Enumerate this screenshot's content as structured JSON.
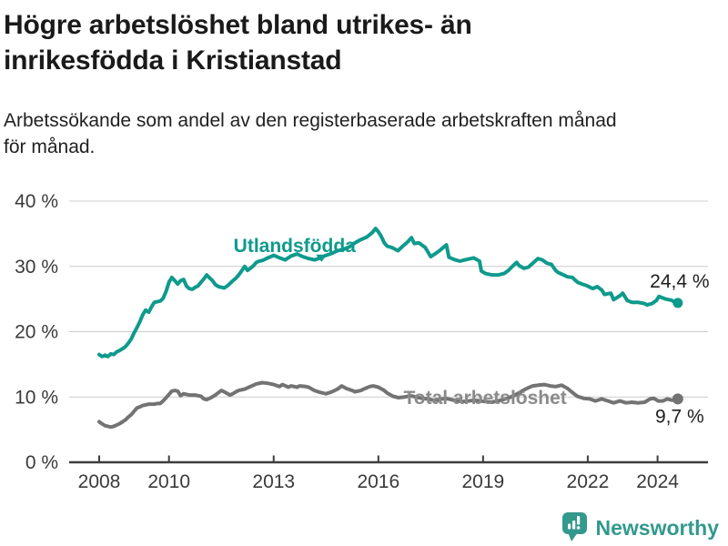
{
  "header": {
    "title": "Högre arbetslöshet bland utrikes- än inrikesfödda i Kristianstad",
    "subtitle": "Arbetssökande som andel av den registerbaserade arbetskraften månad\nför månad."
  },
  "colors": {
    "background": "#ffffff",
    "title": "#1a1a1a",
    "subtitle": "#212121",
    "gridline": "#cccccc",
    "axis": "#3d3d3d",
    "tick_label": "#3a3a3a",
    "value_label": "#1d1d1d",
    "teal": "#0e9a8c",
    "gray": "#737373",
    "brand_teal": "#32998c"
  },
  "chart_data": {
    "type": "line",
    "title": "Högre arbetslöshet bland utrikes- än inrikesfödda i Kristianstad",
    "subtitle": "Arbetssökande som andel av den registerbaserade arbetskraften månad för månad.",
    "grid": true,
    "legend_position": "inline-labels",
    "x_axis": {
      "label": "",
      "range": [
        2007.55,
        2025.45
      ],
      "ticks": [
        2008,
        2010,
        2013,
        2016,
        2019,
        2022,
        2024
      ],
      "tick_labels": [
        "2008",
        "2010",
        "2013",
        "2016",
        "2019",
        "2022",
        "2024"
      ]
    },
    "y_axis": {
      "label": "",
      "unit": "%",
      "range": [
        0,
        40
      ],
      "ticks": [
        0,
        10,
        20,
        30,
        40
      ],
      "tick_labels": [
        "0 %",
        "10 %",
        "20 %",
        "30 %",
        "40 %"
      ]
    },
    "series": [
      {
        "id": "utlandsfodda",
        "name": "Utlandsfödda",
        "color": "#0e9a8c",
        "end_value": 24.4,
        "end_label": "24,4 %",
        "end_label_position": "above",
        "label_anchor": {
          "year": 2013.6,
          "value": 32.2
        },
        "marker": {
          "year": 2014.37,
          "value": 30.7
        },
        "points": [
          [
            2008.0,
            16.5
          ],
          [
            2008.08,
            16.2
          ],
          [
            2008.17,
            16.4
          ],
          [
            2008.25,
            16.2
          ],
          [
            2008.33,
            16.6
          ],
          [
            2008.42,
            16.5
          ],
          [
            2008.5,
            16.9
          ],
          [
            2008.58,
            17.1
          ],
          [
            2008.67,
            17.4
          ],
          [
            2008.75,
            17.7
          ],
          [
            2008.83,
            18.2
          ],
          [
            2008.92,
            18.9
          ],
          [
            2009.0,
            19.8
          ],
          [
            2009.08,
            20.6
          ],
          [
            2009.17,
            21.6
          ],
          [
            2009.25,
            22.6
          ],
          [
            2009.33,
            23.3
          ],
          [
            2009.42,
            23.0
          ],
          [
            2009.5,
            23.8
          ],
          [
            2009.58,
            24.5
          ],
          [
            2009.67,
            24.6
          ],
          [
            2009.75,
            24.7
          ],
          [
            2009.83,
            25.1
          ],
          [
            2009.92,
            26.2
          ],
          [
            2010.0,
            27.6
          ],
          [
            2010.08,
            28.3
          ],
          [
            2010.17,
            27.8
          ],
          [
            2010.25,
            27.3
          ],
          [
            2010.33,
            27.8
          ],
          [
            2010.42,
            28.0
          ],
          [
            2010.5,
            27.0
          ],
          [
            2010.58,
            26.6
          ],
          [
            2010.67,
            26.5
          ],
          [
            2010.75,
            26.8
          ],
          [
            2010.83,
            27.0
          ],
          [
            2010.92,
            27.6
          ],
          [
            2011.0,
            28.1
          ],
          [
            2011.08,
            28.7
          ],
          [
            2011.17,
            28.2
          ],
          [
            2011.25,
            27.8
          ],
          [
            2011.33,
            27.2
          ],
          [
            2011.42,
            26.9
          ],
          [
            2011.5,
            26.8
          ],
          [
            2011.58,
            26.7
          ],
          [
            2011.67,
            27.0
          ],
          [
            2011.75,
            27.4
          ],
          [
            2011.83,
            27.8
          ],
          [
            2011.92,
            28.2
          ],
          [
            2012.0,
            28.7
          ],
          [
            2012.08,
            29.3
          ],
          [
            2012.17,
            30.0
          ],
          [
            2012.25,
            29.4
          ],
          [
            2012.33,
            29.7
          ],
          [
            2012.42,
            30.1
          ],
          [
            2012.5,
            30.6
          ],
          [
            2012.58,
            30.8
          ],
          [
            2012.67,
            30.9
          ],
          [
            2012.75,
            31.1
          ],
          [
            2012.83,
            31.3
          ],
          [
            2012.92,
            31.5
          ],
          [
            2013.0,
            31.7
          ],
          [
            2013.17,
            31.3
          ],
          [
            2013.33,
            31.0
          ],
          [
            2013.5,
            31.6
          ],
          [
            2013.67,
            31.9
          ],
          [
            2013.83,
            31.5
          ],
          [
            2014.0,
            31.2
          ],
          [
            2014.17,
            31.0
          ],
          [
            2014.33,
            31.3
          ],
          [
            2014.5,
            31.7
          ],
          [
            2014.67,
            32.0
          ],
          [
            2014.83,
            32.4
          ],
          [
            2015.0,
            32.6
          ],
          [
            2015.17,
            33.0
          ],
          [
            2015.33,
            33.6
          ],
          [
            2015.5,
            34.1
          ],
          [
            2015.67,
            34.5
          ],
          [
            2015.83,
            35.2
          ],
          [
            2015.92,
            35.8
          ],
          [
            2016.0,
            35.3
          ],
          [
            2016.08,
            34.6
          ],
          [
            2016.17,
            33.6
          ],
          [
            2016.25,
            33.1
          ],
          [
            2016.38,
            32.9
          ],
          [
            2016.56,
            32.4
          ],
          [
            2016.7,
            33.1
          ],
          [
            2016.83,
            33.7
          ],
          [
            2016.95,
            34.4
          ],
          [
            2017.03,
            33.5
          ],
          [
            2017.16,
            33.6
          ],
          [
            2017.34,
            32.9
          ],
          [
            2017.5,
            31.5
          ],
          [
            2017.62,
            31.9
          ],
          [
            2017.75,
            32.4
          ],
          [
            2017.95,
            33.3
          ],
          [
            2018.02,
            31.4
          ],
          [
            2018.2,
            31.0
          ],
          [
            2018.34,
            30.8
          ],
          [
            2018.55,
            31.1
          ],
          [
            2018.73,
            31.3
          ],
          [
            2018.9,
            30.8
          ],
          [
            2018.95,
            29.3
          ],
          [
            2019.07,
            28.9
          ],
          [
            2019.25,
            28.7
          ],
          [
            2019.44,
            28.7
          ],
          [
            2019.6,
            28.9
          ],
          [
            2019.73,
            29.4
          ],
          [
            2019.86,
            30.1
          ],
          [
            2019.96,
            30.6
          ],
          [
            2020.04,
            30.1
          ],
          [
            2020.17,
            29.7
          ],
          [
            2020.3,
            29.9
          ],
          [
            2020.49,
            30.8
          ],
          [
            2020.57,
            31.2
          ],
          [
            2020.7,
            31.0
          ],
          [
            2020.83,
            30.5
          ],
          [
            2020.96,
            30.3
          ],
          [
            2021.08,
            29.4
          ],
          [
            2021.14,
            29.1
          ],
          [
            2021.3,
            28.7
          ],
          [
            2021.42,
            28.4
          ],
          [
            2021.56,
            28.3
          ],
          [
            2021.7,
            27.6
          ],
          [
            2021.83,
            27.3
          ],
          [
            2021.95,
            27.1
          ],
          [
            2022.14,
            26.6
          ],
          [
            2022.27,
            26.9
          ],
          [
            2022.4,
            26.4
          ],
          [
            2022.48,
            25.7
          ],
          [
            2022.66,
            25.9
          ],
          [
            2022.74,
            24.9
          ],
          [
            2022.92,
            25.5
          ],
          [
            2023.0,
            25.9
          ],
          [
            2023.13,
            24.8
          ],
          [
            2023.26,
            24.5
          ],
          [
            2023.44,
            24.5
          ],
          [
            2023.63,
            24.3
          ],
          [
            2023.7,
            24.1
          ],
          [
            2023.84,
            24.3
          ],
          [
            2023.97,
            24.8
          ],
          [
            2024.04,
            25.4
          ],
          [
            2024.23,
            25.0
          ],
          [
            2024.41,
            24.8
          ],
          [
            2024.49,
            24.5
          ],
          [
            2024.58,
            24.4
          ]
        ]
      },
      {
        "id": "total",
        "name": "Total arbetslöshet",
        "color": "#737373",
        "label_color": "#8a8a8a",
        "end_value": 9.7,
        "end_label": "9,7 %",
        "end_label_position": "below",
        "label_anchor": {
          "year": 2019.06,
          "value": 8.9
        },
        "points": [
          [
            2008.0,
            6.2
          ],
          [
            2008.08,
            5.9
          ],
          [
            2008.17,
            5.6
          ],
          [
            2008.25,
            5.5
          ],
          [
            2008.33,
            5.4
          ],
          [
            2008.42,
            5.5
          ],
          [
            2008.5,
            5.7
          ],
          [
            2008.58,
            5.9
          ],
          [
            2008.67,
            6.2
          ],
          [
            2008.75,
            6.5
          ],
          [
            2008.83,
            6.9
          ],
          [
            2008.92,
            7.3
          ],
          [
            2009.0,
            7.8
          ],
          [
            2009.08,
            8.3
          ],
          [
            2009.17,
            8.5
          ],
          [
            2009.25,
            8.7
          ],
          [
            2009.33,
            8.8
          ],
          [
            2009.42,
            8.9
          ],
          [
            2009.5,
            8.9
          ],
          [
            2009.58,
            8.9
          ],
          [
            2009.67,
            9.0
          ],
          [
            2009.75,
            9.0
          ],
          [
            2009.83,
            9.4
          ],
          [
            2009.92,
            9.9
          ],
          [
            2010.0,
            10.4
          ],
          [
            2010.08,
            10.9
          ],
          [
            2010.17,
            11.0
          ],
          [
            2010.25,
            10.9
          ],
          [
            2010.33,
            10.2
          ],
          [
            2010.42,
            10.5
          ],
          [
            2010.5,
            10.4
          ],
          [
            2010.58,
            10.3
          ],
          [
            2010.67,
            10.3
          ],
          [
            2010.75,
            10.3
          ],
          [
            2010.83,
            10.2
          ],
          [
            2010.92,
            10.1
          ],
          [
            2011.0,
            9.7
          ],
          [
            2011.08,
            9.6
          ],
          [
            2011.17,
            9.8
          ],
          [
            2011.33,
            10.3
          ],
          [
            2011.5,
            11.0
          ],
          [
            2011.58,
            10.8
          ],
          [
            2011.75,
            10.3
          ],
          [
            2011.83,
            10.5
          ],
          [
            2011.92,
            10.8
          ],
          [
            2012.0,
            11.0
          ],
          [
            2012.17,
            11.2
          ],
          [
            2012.33,
            11.6
          ],
          [
            2012.5,
            12.0
          ],
          [
            2012.67,
            12.2
          ],
          [
            2012.83,
            12.1
          ],
          [
            2013.0,
            11.9
          ],
          [
            2013.17,
            11.6
          ],
          [
            2013.25,
            11.9
          ],
          [
            2013.42,
            11.5
          ],
          [
            2013.5,
            11.7
          ],
          [
            2013.67,
            11.5
          ],
          [
            2013.75,
            11.7
          ],
          [
            2013.92,
            11.6
          ],
          [
            2014.0,
            11.5
          ],
          [
            2014.17,
            11.0
          ],
          [
            2014.33,
            10.7
          ],
          [
            2014.5,
            10.5
          ],
          [
            2014.67,
            10.8
          ],
          [
            2014.83,
            11.2
          ],
          [
            2014.95,
            11.7
          ],
          [
            2015.08,
            11.3
          ],
          [
            2015.25,
            11.0
          ],
          [
            2015.33,
            10.8
          ],
          [
            2015.5,
            11.0
          ],
          [
            2015.58,
            11.2
          ],
          [
            2015.75,
            11.6
          ],
          [
            2015.85,
            11.7
          ],
          [
            2016.0,
            11.5
          ],
          [
            2016.17,
            11.0
          ],
          [
            2016.25,
            10.6
          ],
          [
            2016.42,
            10.1
          ],
          [
            2016.58,
            9.9
          ],
          [
            2016.75,
            10.0
          ],
          [
            2016.92,
            10.2
          ],
          [
            2017.08,
            10.0
          ],
          [
            2017.25,
            9.8
          ],
          [
            2017.42,
            9.7
          ],
          [
            2017.58,
            9.5
          ],
          [
            2017.75,
            9.6
          ],
          [
            2017.92,
            9.8
          ],
          [
            2018.08,
            9.6
          ],
          [
            2018.25,
            9.4
          ],
          [
            2018.42,
            9.3
          ],
          [
            2018.58,
            9.4
          ],
          [
            2018.75,
            9.5
          ],
          [
            2018.92,
            9.4
          ],
          [
            2019.08,
            9.3
          ],
          [
            2019.25,
            9.2
          ],
          [
            2019.42,
            9.4
          ],
          [
            2019.58,
            9.6
          ],
          [
            2019.75,
            9.9
          ],
          [
            2019.92,
            10.3
          ],
          [
            2020.08,
            10.8
          ],
          [
            2020.25,
            11.3
          ],
          [
            2020.42,
            11.7
          ],
          [
            2020.58,
            11.8
          ],
          [
            2020.75,
            11.9
          ],
          [
            2020.92,
            11.7
          ],
          [
            2021.08,
            11.6
          ],
          [
            2021.25,
            11.8
          ],
          [
            2021.42,
            11.3
          ],
          [
            2021.58,
            10.6
          ],
          [
            2021.7,
            10.1
          ],
          [
            2021.88,
            9.8
          ],
          [
            2022.06,
            9.7
          ],
          [
            2022.22,
            9.4
          ],
          [
            2022.4,
            9.7
          ],
          [
            2022.58,
            9.4
          ],
          [
            2022.74,
            9.1
          ],
          [
            2022.92,
            9.4
          ],
          [
            2023.1,
            9.1
          ],
          [
            2023.26,
            9.2
          ],
          [
            2023.44,
            9.1
          ],
          [
            2023.63,
            9.2
          ],
          [
            2023.78,
            9.7
          ],
          [
            2023.89,
            9.8
          ],
          [
            2024.02,
            9.4
          ],
          [
            2024.15,
            9.4
          ],
          [
            2024.28,
            9.7
          ],
          [
            2024.42,
            9.5
          ],
          [
            2024.58,
            9.7
          ]
        ]
      }
    ]
  },
  "footer": {
    "brand": "Newsworthy",
    "brand_color": "#32998c",
    "logo_icon": "bar-chart-speech-bubble"
  }
}
